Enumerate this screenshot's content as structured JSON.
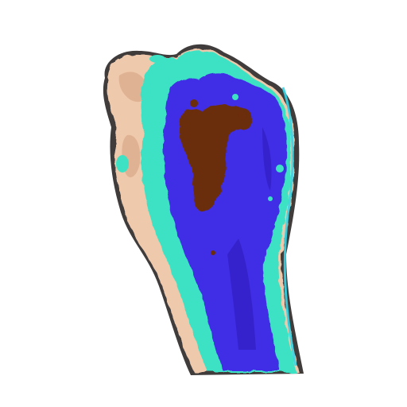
{
  "image": {
    "subject": "clenched-fist",
    "palette": {
      "background": "#ffffff",
      "skin": "#efc9ab",
      "skin_shadow": "#d8a889",
      "edge": "#1f1a1a",
      "turquoise": "#3de2c4",
      "cyan_edge": "#35d4e6",
      "blue": "#3f2ee6",
      "blue_dark": "#2c19b8",
      "brown": "#6b2d0c"
    }
  }
}
